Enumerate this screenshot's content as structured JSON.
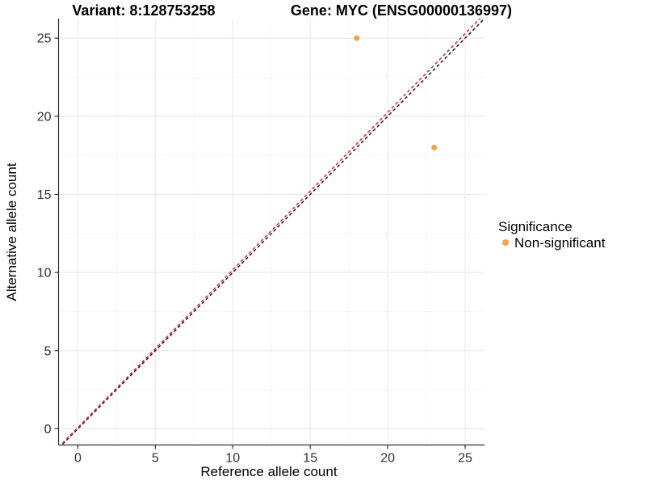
{
  "chart_data": {
    "type": "scatter",
    "title_variant": "Variant: 8:128753258",
    "title_gene": "Gene: MYC (ENSG00000136997)",
    "xlabel": "Reference allele count",
    "ylabel": "Alternative allele count",
    "xlim": [
      -1.25,
      26.25
    ],
    "ylim": [
      -1.04,
      26.25
    ],
    "xticks": [
      0,
      5,
      10,
      15,
      20,
      25
    ],
    "yticks": [
      0,
      5,
      10,
      15,
      20,
      25
    ],
    "grid": {
      "major_color": "#E8E8E8",
      "minor_color": "#F4F4F4",
      "minor": true
    },
    "axis_color": "#333333",
    "tick_label_color": "#303030",
    "series": [
      {
        "name": "Non-significant",
        "color": "#F8A340",
        "marker": "circle",
        "points": [
          {
            "x": 18,
            "y": 25
          },
          {
            "x": 23,
            "y": 18
          }
        ]
      }
    ],
    "reference_lines": [
      {
        "name": "identity",
        "color": "#1A1A1A",
        "style": "dashed",
        "from": {
          "x": -1.25,
          "y": -1.25
        },
        "to": {
          "x": 26.25,
          "y": 26.25
        }
      },
      {
        "name": "fit",
        "color": "#E8262A",
        "style": "dashed",
        "from": {
          "x": -1.25,
          "y": -1.18
        },
        "to": {
          "x": 26.25,
          "y": 26.55
        }
      }
    ],
    "legend": {
      "title": "Significance",
      "position": "right",
      "items": [
        {
          "label": "Non-significant",
          "color": "#F8A340"
        }
      ]
    }
  }
}
